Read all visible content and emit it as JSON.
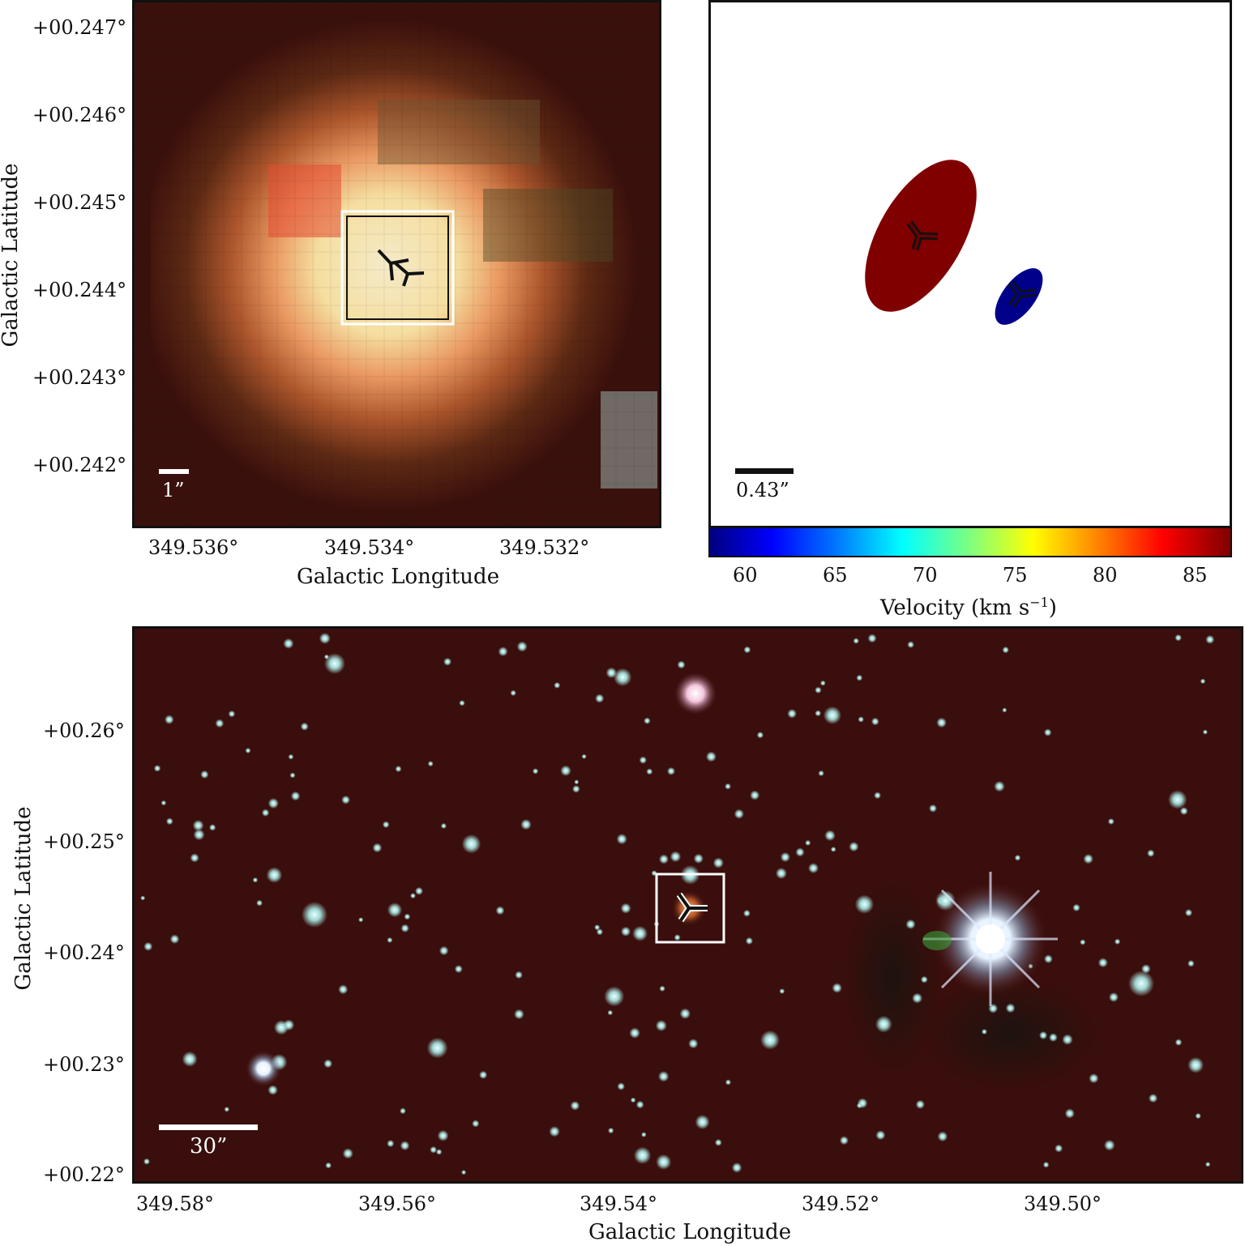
{
  "top_left_panel": {
    "y_ticks": [
      "+00.247°",
      "+00.246°",
      "+00.245°",
      "+00.244°",
      "+00.243°",
      "+00.242°"
    ],
    "x_ticks": [
      "349.536°",
      "349.534°",
      "349.532°"
    ],
    "xlabel": "Galactic Longitude",
    "ylabel": "Galactic Latitude",
    "scalebar_label": "1”"
  },
  "top_right_panel": {
    "scalebar_label": "0.43”",
    "colorbar": {
      "ticks": [
        "60",
        "65",
        "70",
        "75",
        "80",
        "85"
      ],
      "label": "Velocity (km s",
      "label_exp": "−1",
      "label_close": ")",
      "range": [
        58.2,
        87.0
      ]
    },
    "ellipses": [
      {
        "velocity": 86,
        "color": "#800000"
      },
      {
        "velocity": 59,
        "color": "#00008b"
      }
    ]
  },
  "bottom_panel": {
    "y_ticks": [
      "+00.26°",
      "+00.25°",
      "+00.24°",
      "+00.23°",
      "+00.22°"
    ],
    "x_ticks": [
      "349.58°",
      "349.56°",
      "349.54°",
      "349.52°",
      "349.50°"
    ],
    "xlabel": "Galactic Longitude",
    "ylabel": "Galactic Latitude",
    "scalebar_label": "30”"
  },
  "colors": {
    "image_background": "#3a0e0c",
    "zoom_core": "#fff3c8",
    "star_color": "#bfe8e8"
  }
}
